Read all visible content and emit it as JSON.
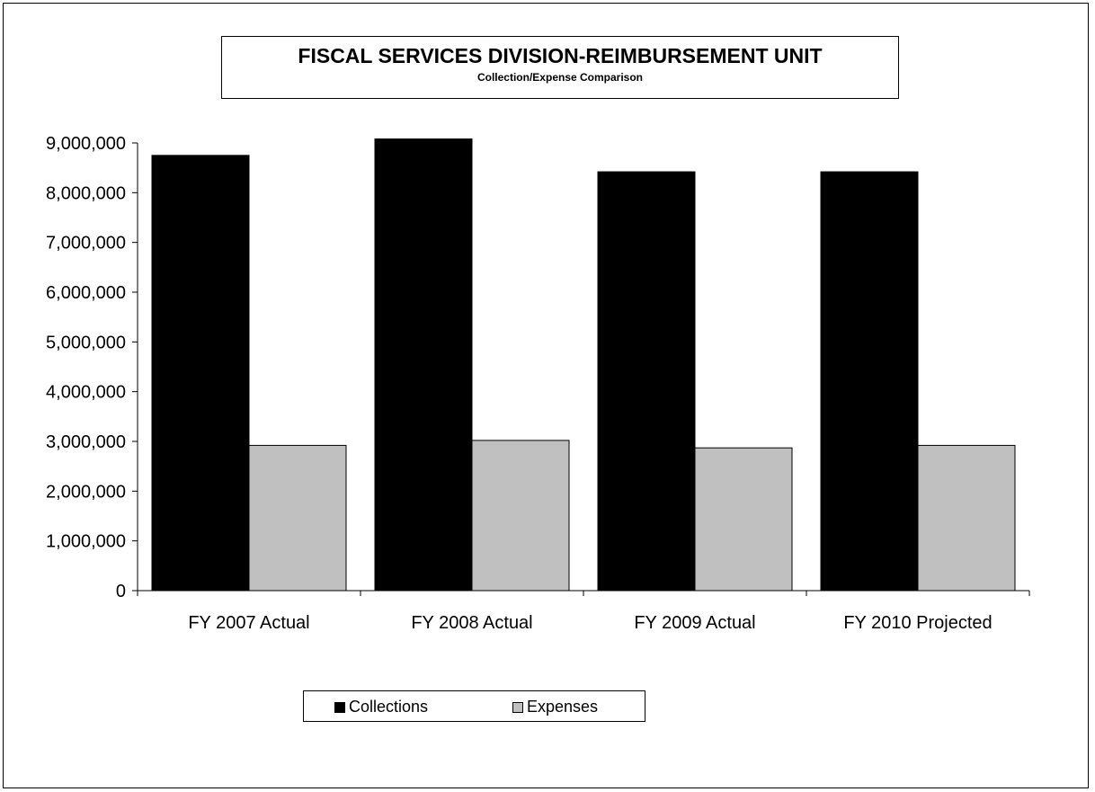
{
  "chart_data": {
    "type": "bar",
    "title": "FISCAL SERVICES DIVISION-REIMBURSEMENT UNIT",
    "subtitle": "Collection/Expense Comparison",
    "categories": [
      "FY 2007 Actual",
      "FY 2008 Actual",
      "FY 2009 Actual",
      "FY 2010 Projected"
    ],
    "series": [
      {
        "name": "Collections",
        "color": "#000000",
        "values": [
          8750000,
          9080000,
          8420000,
          8420000
        ]
      },
      {
        "name": "Expenses",
        "color": "#c0c0c0",
        "values": [
          2920000,
          3020000,
          2870000,
          2920000
        ]
      }
    ],
    "ylim": [
      0,
      9000000
    ],
    "yticks": [
      "0",
      "1,000,000",
      "2,000,000",
      "3,000,000",
      "4,000,000",
      "5,000,000",
      "6,000,000",
      "7,000,000",
      "8,000,000",
      "9,000,000"
    ],
    "xlabel": "",
    "ylabel": "",
    "grid": false,
    "legend_position": "bottom"
  }
}
